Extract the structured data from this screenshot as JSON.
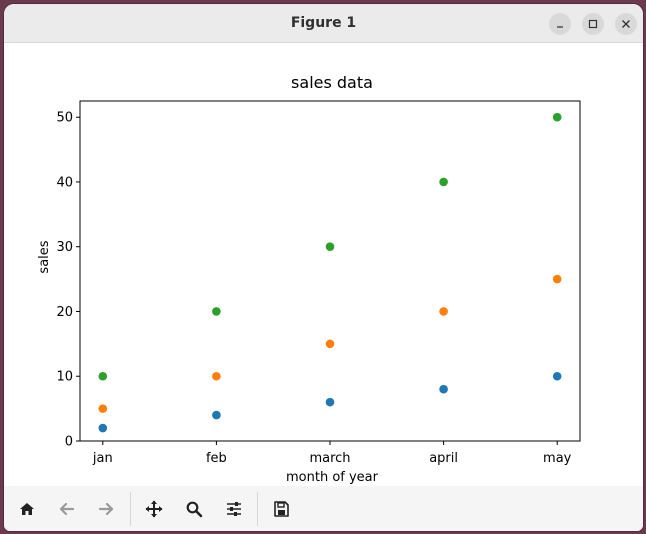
{
  "window": {
    "title": "Figure 1"
  },
  "chart_data": {
    "type": "scatter",
    "title": "sales data",
    "xlabel": "month of year",
    "ylabel": "sales",
    "categories": [
      "jan",
      "feb",
      "march",
      "april",
      "may"
    ],
    "ylim": [
      0,
      52.5
    ],
    "yticks": [
      0,
      10,
      20,
      30,
      40,
      50
    ],
    "grid": false,
    "series": [
      {
        "values": [
          2,
          4,
          6,
          8,
          10
        ],
        "color": "#1f77b4"
      },
      {
        "values": [
          5,
          10,
          15,
          20,
          25
        ],
        "color": "#ff7f0e"
      },
      {
        "values": [
          10,
          20,
          30,
          40,
          50
        ],
        "color": "#2ca02c"
      }
    ]
  },
  "toolbar": {
    "icons": [
      "home-icon",
      "back-arrow-icon",
      "forward-arrow-icon",
      "pan-icon",
      "zoom-icon",
      "configure-subplots-icon",
      "save-icon"
    ]
  }
}
